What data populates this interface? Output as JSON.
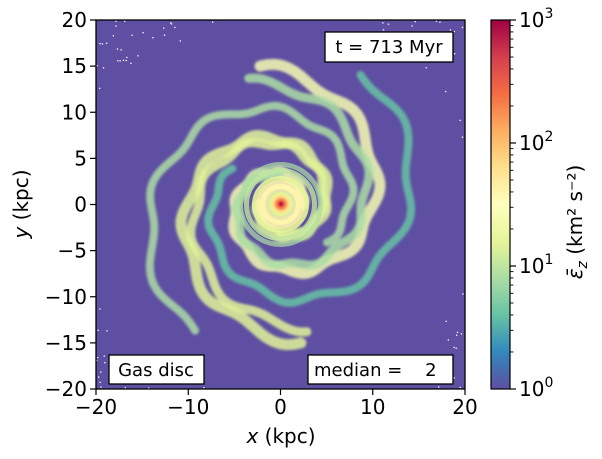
{
  "chart_data": {
    "type": "heatmap",
    "title": "",
    "xlabel_text": "x",
    "xlabel_unit": "(kpc)",
    "ylabel_text": "y",
    "ylabel_unit": "(kpc)",
    "xlim": [
      -20,
      20
    ],
    "ylim": [
      -20,
      20
    ],
    "xticks": [
      -20,
      -10,
      0,
      10,
      20
    ],
    "yticks": [
      -20,
      -15,
      -10,
      -5,
      0,
      5,
      10,
      15,
      20
    ],
    "xtick_labels": [
      "−20",
      "−10",
      "0",
      "10",
      "20"
    ],
    "ytick_labels": [
      "−20",
      "−15",
      "−10",
      "−5",
      "0",
      "5",
      "10",
      "15",
      "20"
    ],
    "colorbar": {
      "scale": "log",
      "vmin": 1,
      "vmax": 1000,
      "cmap": "Spectral_r",
      "colors": [
        "#5e4fa2",
        "#3288bd",
        "#66c2a5",
        "#abdda4",
        "#e6f598",
        "#ffffbf",
        "#fee08b",
        "#fdae61",
        "#f46d43",
        "#d53e4f",
        "#9e0142"
      ],
      "label_main": "ε̄",
      "label_sub": "z",
      "label_unit": "(km² s⁻²)",
      "tick_bases": [
        "10",
        "10",
        "10",
        "10"
      ],
      "tick_exps": [
        "0",
        "1",
        "2",
        "3"
      ],
      "tick_values": [
        1,
        10,
        100,
        1000
      ]
    },
    "background_value": 1,
    "spiral_arm_values": [
      4,
      8,
      15,
      25,
      40
    ],
    "core_peak_value": 1000,
    "annotations": {
      "time": "t = 713 Myr",
      "component": "Gas disc",
      "median": "median =    2"
    }
  }
}
